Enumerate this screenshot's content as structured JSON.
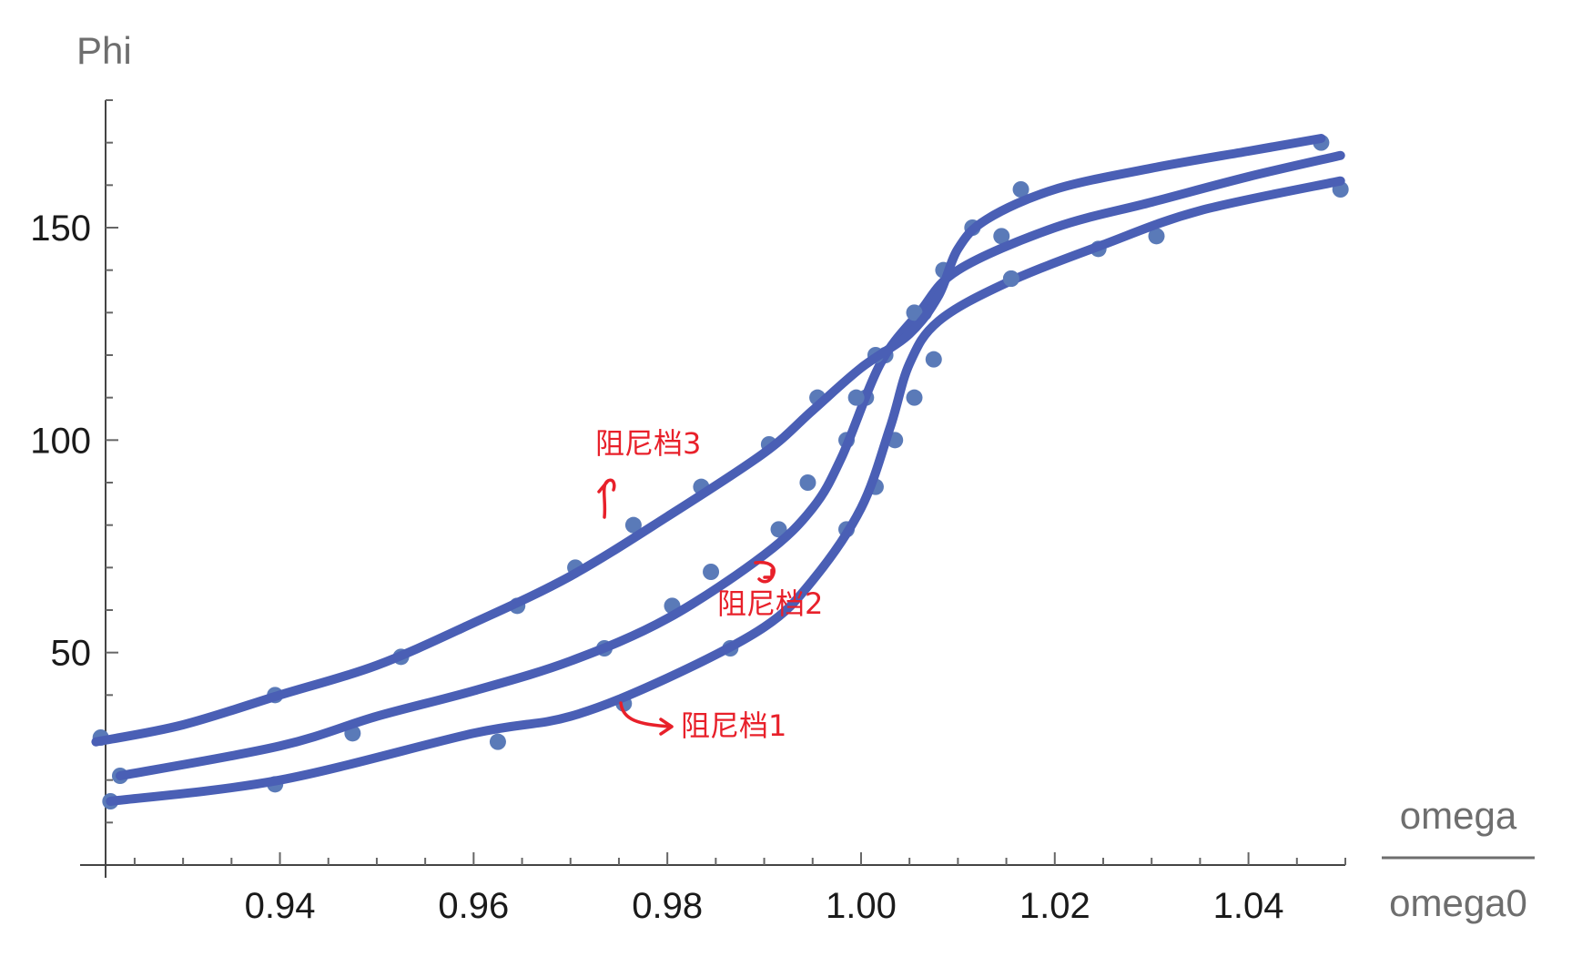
{
  "chart_data": {
    "type": "scatter",
    "title": "",
    "ylabel": "Phi",
    "xlabel_numerator": "omega",
    "xlabel_denominator": "omega0",
    "xlim": [
      0.922,
      1.05
    ],
    "ylim": [
      0,
      180
    ],
    "x_ticks": [
      0.94,
      0.96,
      0.98,
      1.0,
      1.02,
      1.04
    ],
    "x_tick_labels": [
      "0.94",
      "0.96",
      "0.98",
      "1.00",
      "1.02",
      "1.04"
    ],
    "y_ticks": [
      50,
      100,
      150
    ],
    "y_tick_labels": [
      "50",
      "100",
      "150"
    ],
    "grid": false,
    "colors": {
      "series": "#4a5fb5",
      "points": "#5a7ab8",
      "annotation": "#e8202a"
    },
    "series": [
      {
        "name": "阻尼档1",
        "points": [
          [
            0.9225,
            15
          ],
          [
            0.9395,
            19
          ],
          [
            0.9625,
            29
          ],
          [
            0.9755,
            38
          ],
          [
            0.9865,
            51
          ],
          [
            0.9985,
            79
          ],
          [
            1.0015,
            89
          ],
          [
            1.0035,
            100
          ],
          [
            1.0055,
            110
          ],
          [
            1.0075,
            119
          ],
          [
            1.0155,
            138
          ],
          [
            1.0245,
            145
          ],
          [
            1.0305,
            148
          ],
          [
            1.0495,
            159
          ]
        ],
        "curve": [
          [
            0.9225,
            15
          ],
          [
            0.94,
            20
          ],
          [
            0.96,
            31
          ],
          [
            0.97,
            35
          ],
          [
            0.98,
            44
          ],
          [
            0.99,
            56
          ],
          [
            0.995,
            67
          ],
          [
            1.0,
            84
          ],
          [
            1.003,
            103
          ],
          [
            1.005,
            118
          ],
          [
            1.008,
            128
          ],
          [
            1.015,
            137
          ],
          [
            1.025,
            146
          ],
          [
            1.035,
            154
          ],
          [
            1.0495,
            161
          ]
        ]
      },
      {
        "name": "阻尼档2",
        "points": [
          [
            0.9235,
            21
          ],
          [
            0.9475,
            31
          ],
          [
            0.9735,
            51
          ],
          [
            0.9805,
            61
          ],
          [
            0.9845,
            69
          ],
          [
            0.9915,
            79
          ],
          [
            0.9945,
            90
          ],
          [
            0.9985,
            100
          ],
          [
            1.0005,
            110
          ],
          [
            1.0025,
            120
          ],
          [
            1.0065,
            130
          ],
          [
            1.0145,
            148
          ],
          [
            1.0155,
            138
          ]
        ],
        "curve": [
          [
            0.9235,
            21
          ],
          [
            0.94,
            28
          ],
          [
            0.95,
            35
          ],
          [
            0.96,
            41
          ],
          [
            0.97,
            48
          ],
          [
            0.98,
            58
          ],
          [
            0.99,
            73
          ],
          [
            0.995,
            84
          ],
          [
            0.998,
            96
          ],
          [
            1.002,
            118
          ],
          [
            1.006,
            130
          ],
          [
            1.01,
            140
          ],
          [
            1.02,
            150
          ],
          [
            1.03,
            156
          ],
          [
            1.04,
            162
          ],
          [
            1.0495,
            167
          ]
        ]
      },
      {
        "name": "阻尼档3",
        "points": [
          [
            0.9215,
            30
          ],
          [
            0.9395,
            40
          ],
          [
            0.9525,
            49
          ],
          [
            0.9645,
            61
          ],
          [
            0.9705,
            70
          ],
          [
            0.9765,
            80
          ],
          [
            0.9835,
            89
          ],
          [
            0.9905,
            99
          ],
          [
            0.9955,
            110
          ],
          [
            0.9995,
            110
          ],
          [
            1.0015,
            120
          ],
          [
            1.0055,
            130
          ],
          [
            1.0085,
            140
          ],
          [
            1.0115,
            150
          ],
          [
            1.0165,
            159
          ],
          [
            1.0475,
            170
          ]
        ],
        "curve": [
          [
            0.921,
            29
          ],
          [
            0.93,
            33
          ],
          [
            0.94,
            40
          ],
          [
            0.95,
            47
          ],
          [
            0.96,
            57
          ],
          [
            0.97,
            68
          ],
          [
            0.98,
            82
          ],
          [
            0.99,
            97
          ],
          [
            0.995,
            107
          ],
          [
            1.0,
            117
          ],
          [
            1.005,
            125
          ],
          [
            1.008,
            134
          ],
          [
            1.01,
            145
          ],
          [
            1.013,
            152
          ],
          [
            1.02,
            159
          ],
          [
            1.03,
            164
          ],
          [
            1.04,
            168
          ],
          [
            1.0475,
            171
          ]
        ]
      }
    ],
    "annotations": [
      {
        "text": "阻尼档3",
        "x": 0.974,
        "y": 97,
        "series": "阻尼档3"
      },
      {
        "text": "阻尼档2",
        "x": 0.9915,
        "y": 60,
        "series": "阻尼档2"
      },
      {
        "text": "阻尼档1",
        "x": 0.9839,
        "y": 30,
        "series": "阻尼档1"
      }
    ]
  }
}
